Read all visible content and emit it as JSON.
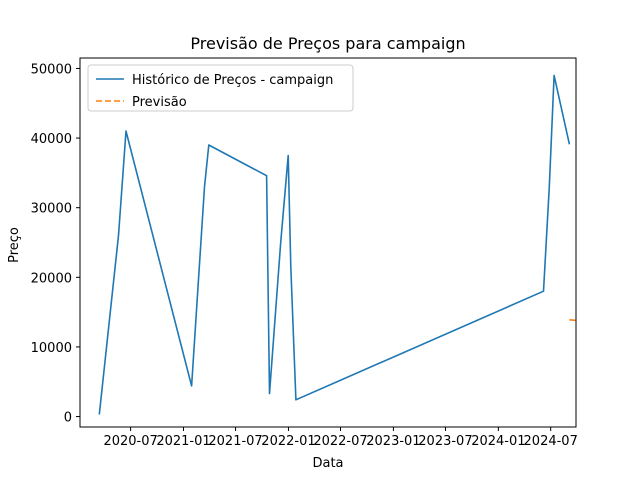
{
  "chart_data": {
    "type": "line",
    "title": "Previsão de Preços para campaign",
    "xlabel": "Data",
    "ylabel": "Preço",
    "ylim": [
      -1500,
      51500
    ],
    "xlim": [
      "2020-01-07",
      "2024-09-27"
    ],
    "y_ticks": [
      0,
      10000,
      20000,
      30000,
      40000,
      50000
    ],
    "x_ticks": [
      "2020-07",
      "2021-01",
      "2021-07",
      "2022-01",
      "2022-07",
      "2023-01",
      "2023-07",
      "2024-01",
      "2024-07"
    ],
    "grid": false,
    "legend_position": "top-left",
    "series": [
      {
        "name": "Histórico de Preços - campaign",
        "color": "#1f77b4",
        "style": "solid",
        "x": [
          "2020-03-14",
          "2020-05-20",
          "2020-06-15",
          "2021-01-29",
          "2021-03-15",
          "2021-03-30",
          "2021-10-17",
          "2021-10-27",
          "2021-12-05",
          "2021-12-31",
          "2022-01-09",
          "2022-01-27",
          "2024-06-06",
          "2024-06-26",
          "2024-07-13",
          "2024-09-04"
        ],
        "values": [
          300,
          26000,
          41000,
          4400,
          33000,
          39000,
          34600,
          3300,
          25000,
          37500,
          21500,
          2400,
          18000,
          33000,
          49000,
          39100
        ]
      },
      {
        "name": "Previsão",
        "color": "#ff7f0e",
        "style": "dashed",
        "x": [
          "2024-09-04",
          "2024-09-30"
        ],
        "values": [
          13900,
          13800
        ]
      }
    ]
  }
}
